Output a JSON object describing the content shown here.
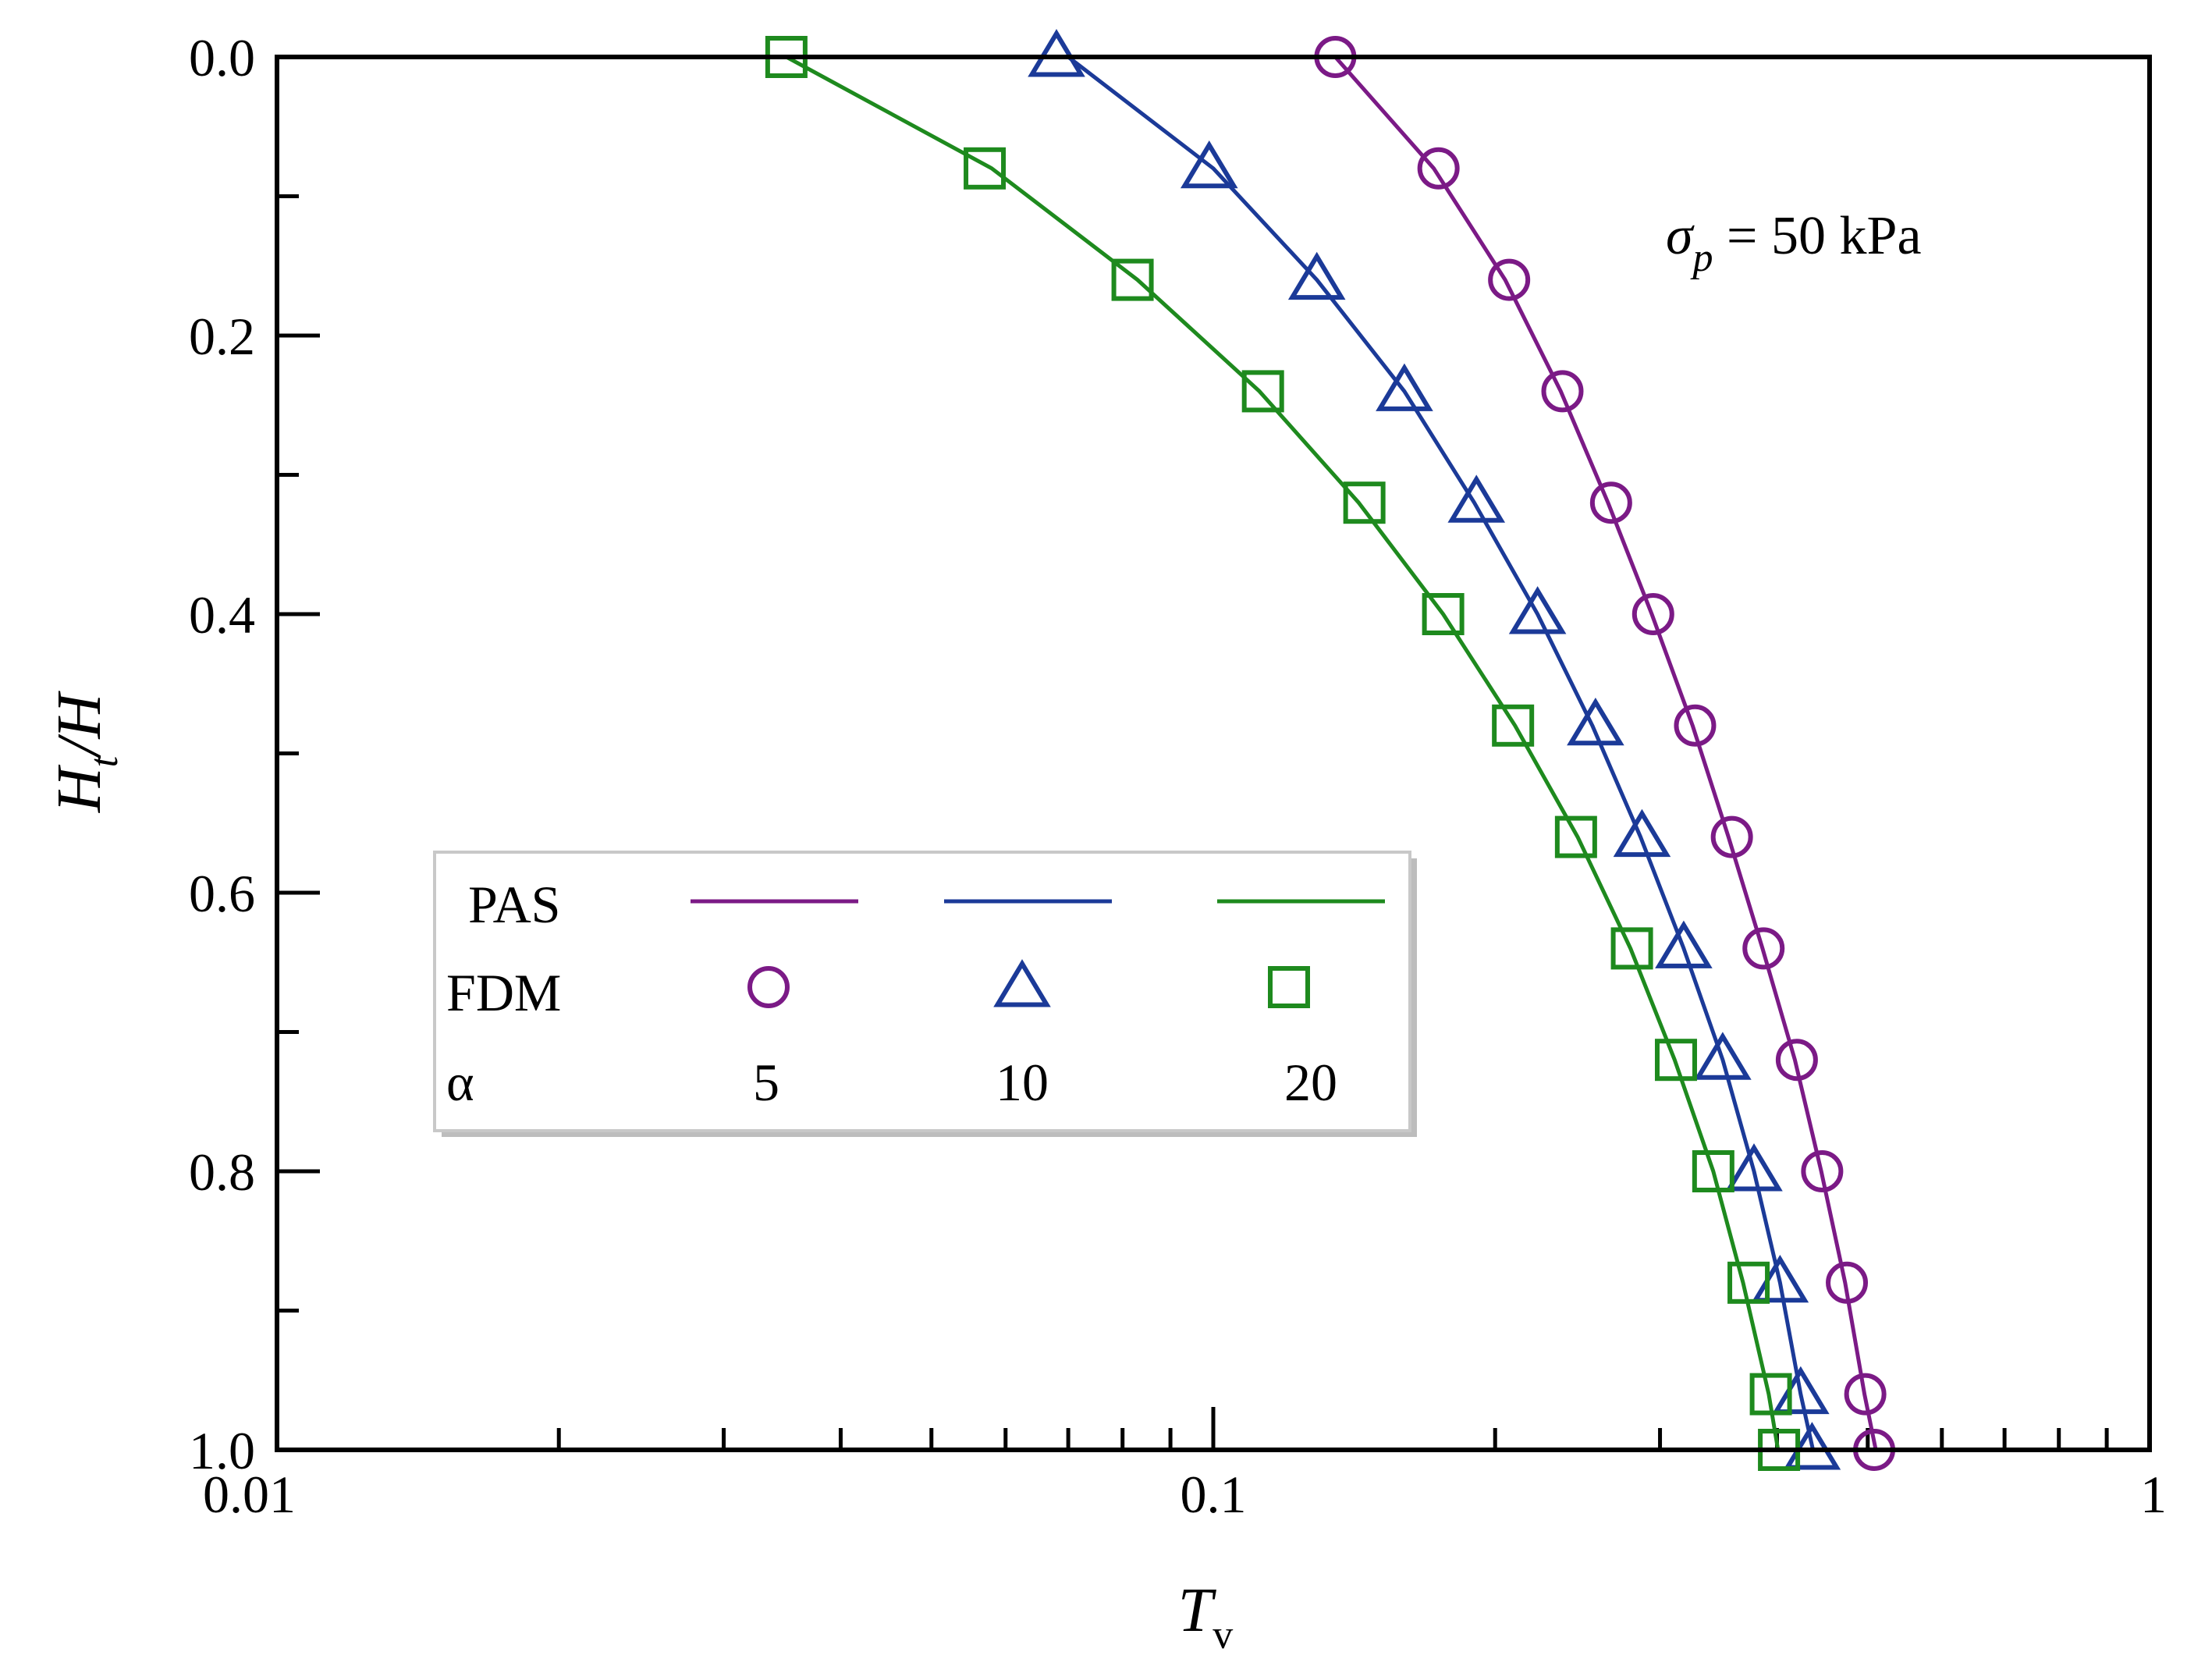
{
  "chart_data": {
    "type": "line",
    "xscale": "log",
    "xlim": [
      0.01,
      1
    ],
    "ylim": [
      1.0,
      0.0
    ],
    "y_inverted": true,
    "xlabel": {
      "main": "T",
      "subscript": "v"
    },
    "ylabel": {
      "main": "H",
      "subscript": "t",
      "tail": "/H"
    },
    "x_ticklabels": [
      "0.01",
      "0.1",
      "1"
    ],
    "x_tickvalues": [
      0.01,
      0.1,
      1
    ],
    "y_ticklabels": [
      "0.0",
      "0.2",
      "0.4",
      "0.6",
      "0.8",
      "1.0"
    ],
    "y_tickvalues": [
      0.0,
      0.2,
      0.4,
      0.6,
      0.8,
      1.0
    ],
    "annotation": {
      "symbol": "σ",
      "subscript": "p",
      "text": " = 50 kPa"
    },
    "legend": {
      "position": "lower-left",
      "row_labels": [
        "PAS",
        "FDM",
        "α"
      ],
      "alpha_values": [
        "5",
        "10",
        "20"
      ]
    },
    "series": [
      {
        "name": "α = 5",
        "alpha": "5",
        "color": "#7b1a86",
        "marker": "circle",
        "pas_y": [
          0.0,
          0.08,
          0.16,
          0.24,
          0.32,
          0.4,
          0.48,
          0.56,
          0.64,
          0.72,
          0.8,
          0.88,
          0.96,
          1.0
        ],
        "pas_x": [
          0.135,
          0.172,
          0.205,
          0.235,
          0.264,
          0.294,
          0.325,
          0.355,
          0.386,
          0.418,
          0.446,
          0.473,
          0.496,
          0.51
        ],
        "fdm_y": [
          0.0,
          0.08,
          0.16,
          0.24,
          0.32,
          0.4,
          0.48,
          0.56,
          0.64,
          0.72,
          0.8,
          0.88,
          0.96,
          1.0
        ],
        "fdm_x": [
          0.135,
          0.174,
          0.207,
          0.236,
          0.266,
          0.295,
          0.327,
          0.358,
          0.387,
          0.42,
          0.447,
          0.475,
          0.497,
          0.508
        ]
      },
      {
        "name": "α = 10",
        "alpha": "10",
        "color": "#1b3a98",
        "marker": "triangle",
        "pas_y": [
          0.0,
          0.08,
          0.16,
          0.24,
          0.32,
          0.4,
          0.48,
          0.56,
          0.64,
          0.72,
          0.8,
          0.88,
          0.96,
          1.0
        ],
        "pas_x": [
          0.07,
          0.1,
          0.129,
          0.16,
          0.19,
          0.222,
          0.254,
          0.286,
          0.318,
          0.35,
          0.378,
          0.403,
          0.424,
          0.437
        ],
        "fdm_y": [
          0.0,
          0.08,
          0.16,
          0.24,
          0.32,
          0.4,
          0.48,
          0.56,
          0.64,
          0.72,
          0.8,
          0.88,
          0.96,
          1.0
        ],
        "fdm_x": [
          0.068,
          0.099,
          0.129,
          0.16,
          0.191,
          0.222,
          0.256,
          0.287,
          0.318,
          0.35,
          0.378,
          0.403,
          0.424,
          0.436
        ]
      },
      {
        "name": "α = 20",
        "alpha": "20",
        "color": "#1e8a1e",
        "marker": "square",
        "pas_y": [
          0.0,
          0.08,
          0.16,
          0.24,
          0.32,
          0.4,
          0.48,
          0.56,
          0.64,
          0.72,
          0.8,
          0.88,
          0.96,
          1.0
        ],
        "pas_x": [
          0.035,
          0.058,
          0.083,
          0.112,
          0.143,
          0.176,
          0.21,
          0.245,
          0.279,
          0.311,
          0.342,
          0.368,
          0.392,
          0.401
        ],
        "fdm_y": [
          0.0,
          0.08,
          0.16,
          0.24,
          0.32,
          0.4,
          0.48,
          0.56,
          0.64,
          0.72,
          0.8,
          0.88,
          0.96,
          1.0
        ],
        "fdm_x": [
          0.035,
          0.057,
          0.082,
          0.113,
          0.145,
          0.176,
          0.209,
          0.244,
          0.28,
          0.312,
          0.342,
          0.373,
          0.394,
          0.402
        ]
      }
    ]
  }
}
